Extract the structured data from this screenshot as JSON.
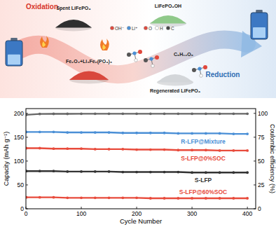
{
  "diagram": {
    "oxidation": "Oxidation",
    "reduction": "Reduction",
    "materials": [
      "Spent LiFePO₄",
      "Fe₂O₃+Li₃Fe₂(PO₄)₃",
      "LiFePO₄OH",
      "C₆H₁₂O₆",
      "Regenerated LiFePO₄"
    ],
    "species": [
      "OH⁻",
      "Li⁺",
      "O",
      "H",
      "C"
    ]
  },
  "chart_data": {
    "type": "line",
    "x_label": "Cycle Number",
    "y_label": "Capacity (mAh g⁻¹)",
    "y2_label": "Coulombic efficiency (%)",
    "x": [
      1,
      25,
      50,
      75,
      100,
      125,
      150,
      175,
      200,
      225,
      250,
      275,
      300,
      325,
      350,
      375,
      400
    ],
    "xlim": [
      0,
      415
    ],
    "xticks": [
      0,
      100,
      200,
      300,
      400
    ],
    "ylim": [
      0,
      210
    ],
    "yticks": [
      0,
      50,
      100,
      150,
      200
    ],
    "y2lim": [
      0,
      105
    ],
    "y2ticks": [
      0,
      25,
      50,
      75,
      100
    ],
    "marker": "circle",
    "series": [
      {
        "name": "R-LFP@Mixture",
        "color": "#4a8fd6",
        "values": [
          161,
          161,
          161,
          160,
          160,
          160,
          160,
          159,
          159,
          159,
          159,
          158,
          158,
          158,
          158,
          157,
          157
        ]
      },
      {
        "name": "S-LFP@0%SOC",
        "color": "#e84b3c",
        "values": [
          127,
          127,
          126,
          126,
          126,
          125,
          125,
          125,
          124,
          124,
          124,
          123,
          123,
          123,
          122,
          122,
          122
        ]
      },
      {
        "name": "S-LFP",
        "color": "#333333",
        "values": [
          79,
          79,
          79,
          78,
          78,
          78,
          78,
          77,
          77,
          77,
          77,
          77,
          76,
          76,
          76,
          76,
          76
        ]
      },
      {
        "name": "S-LFP@60%SOC",
        "color": "#e84b3c",
        "values": [
          24,
          24,
          24,
          23,
          23,
          23,
          23,
          23,
          23,
          22,
          22,
          22,
          22,
          22,
          22,
          22,
          22
        ]
      },
      {
        "color": "#666666",
        "axis": "y2",
        "values": [
          98.5,
          99.4,
          99.5,
          99.5,
          99.6,
          99.6,
          99.6,
          99.6,
          99.6,
          99.6,
          99.6,
          99.6,
          99.6,
          99.6,
          99.6,
          99.6,
          99.6
        ]
      }
    ]
  }
}
